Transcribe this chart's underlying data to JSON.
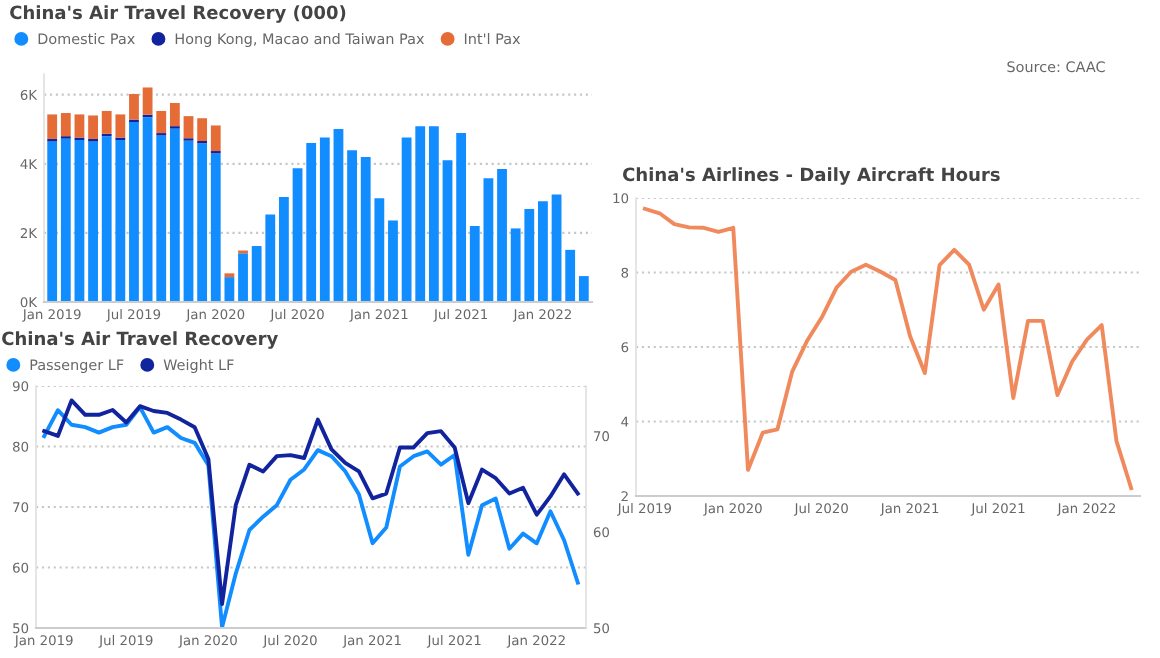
{
  "chart_data": [
    {
      "type": "bar",
      "title": "China's Air Travel Recovery (000)",
      "stacked": true,
      "legend": "top left",
      "grid": "y",
      "categories": [
        "Jan 2019",
        null,
        null,
        null,
        null,
        null,
        "Jul 2019",
        null,
        null,
        null,
        null,
        null,
        "Jan 2020",
        null,
        null,
        null,
        null,
        null,
        "Jul 2020",
        null,
        null,
        null,
        null,
        null,
        "Jan 2021",
        null,
        null,
        null,
        null,
        null,
        "Jul 2021",
        null,
        null,
        null,
        null,
        null,
        "Jan 2022",
        null,
        null,
        null
      ],
      "series": [
        {
          "name": "Domestic Pax",
          "color": "#118dff",
          "values": [
            4.65,
            4.73,
            4.69,
            4.65,
            4.8,
            4.69,
            5.21,
            5.35,
            4.82,
            5.02,
            4.67,
            4.59,
            4.3,
            0.72,
            1.41,
            1.62,
            2.53,
            3.04,
            3.87,
            4.6,
            4.76,
            5.01,
            4.39,
            4.2,
            3.0,
            2.36,
            4.76,
            5.09,
            5.09,
            4.1,
            4.89,
            2.2,
            3.58,
            3.85,
            2.13,
            2.69,
            2.92,
            3.11,
            1.51,
            0.75
          ]
        },
        {
          "name": "Hong Kong, Macao and Taiwan Pax",
          "color": "#12239e",
          "values": [
            0.07,
            0.07,
            0.07,
            0.07,
            0.07,
            0.07,
            0.07,
            0.07,
            0.07,
            0.07,
            0.07,
            0.07,
            0.07,
            null,
            null,
            null,
            null,
            null,
            null,
            null,
            null,
            null,
            null,
            null,
            null,
            null,
            null,
            null,
            null,
            null,
            null,
            null,
            null,
            null,
            null,
            null,
            null,
            null,
            null,
            null
          ]
        },
        {
          "name": "Int'l Pax",
          "color": "#e66c37",
          "values": [
            0.71,
            0.67,
            0.67,
            0.68,
            0.66,
            0.67,
            0.74,
            0.79,
            0.64,
            0.67,
            0.64,
            0.66,
            0.74,
            0.11,
            0.08,
            null,
            null,
            null,
            null,
            null,
            null,
            null,
            null,
            null,
            null,
            null,
            null,
            null,
            null,
            null,
            null,
            null,
            null,
            null,
            null,
            null,
            null,
            null,
            null,
            null
          ]
        }
      ],
      "ylim": [
        0,
        6.6
      ],
      "yticks": [
        {
          "value": 0,
          "label": "0K"
        },
        {
          "value": 2,
          "label": "2K"
        },
        {
          "value": 4,
          "label": "4K"
        },
        {
          "value": 6,
          "label": "6K"
        }
      ]
    },
    {
      "type": "line",
      "title": "China's Air Travel Recovery",
      "legend": "top left",
      "grid": "y",
      "categories": [
        "Jan 2019",
        null,
        null,
        null,
        null,
        null,
        "Jul 2019",
        null,
        null,
        null,
        null,
        null,
        "Jan 2020",
        null,
        null,
        null,
        null,
        null,
        "Jul 2020",
        null,
        null,
        null,
        null,
        null,
        "Jan 2021",
        null,
        null,
        null,
        null,
        null,
        "Jul 2021",
        null,
        null,
        null,
        null,
        null,
        "Jan 2022",
        null,
        null,
        null
      ],
      "series": [
        {
          "name": "Passenger LF",
          "color": "#118dff",
          "values": [
            81.7,
            86.0,
            83.6,
            83.2,
            82.3,
            83.2,
            83.6,
            86.5,
            82.3,
            83.2,
            81.4,
            80.6,
            76.9,
            50.1,
            59.0,
            66.2,
            68.4,
            70.3,
            74.5,
            76.2,
            79.4,
            78.4,
            75.9,
            72.1,
            64.0,
            66.6,
            76.7,
            78.4,
            79.2,
            77.0,
            78.6,
            62.1,
            70.3,
            71.4,
            63.1,
            65.6,
            64.0,
            69.3,
            64.5,
            57.5
          ]
        },
        {
          "name": "Weight LF",
          "color": "#12239e",
          "axis": "y2",
          "values": [
            70.5,
            70.0,
            73.7,
            72.2,
            72.2,
            72.7,
            71.4,
            73.1,
            72.6,
            72.4,
            71.7,
            70.9,
            67.6,
            52.5,
            62.8,
            67.0,
            66.3,
            67.9,
            68.0,
            67.7,
            71.7,
            68.6,
            67.2,
            66.3,
            63.5,
            64.0,
            68.8,
            68.8,
            70.3,
            70.5,
            68.8,
            63.0,
            66.5,
            65.6,
            64.0,
            64.6,
            61.8,
            63.7,
            66.0,
            64.0
          ]
        }
      ],
      "ylim": [
        50,
        90
      ],
      "yticks": [
        50,
        60,
        70,
        80,
        90
      ],
      "y2lim": [
        50,
        75.2
      ],
      "y2ticks": [
        50,
        60,
        70
      ]
    },
    {
      "type": "line",
      "title": "China's Airlines - Daily Aircraft Hours",
      "grid": "y",
      "annotations": [
        "Source: CAAC"
      ],
      "categories": [
        "Jul 2019",
        null,
        null,
        null,
        null,
        null,
        "Jan 2020",
        null,
        null,
        null,
        null,
        null,
        "Jul 2020",
        null,
        null,
        null,
        null,
        null,
        "Jan 2021",
        null,
        null,
        null,
        null,
        null,
        "Jul 2021",
        null,
        null,
        null,
        null,
        null,
        "Jan 2022",
        null,
        null,
        null
      ],
      "series": [
        {
          "color": "#f08a5d",
          "values": [
            9.71,
            9.59,
            9.3,
            9.21,
            9.2,
            9.09,
            9.2,
            2.7,
            3.7,
            3.79,
            5.34,
            6.16,
            6.79,
            7.59,
            8.02,
            8.21,
            8.02,
            7.8,
            6.29,
            5.3,
            8.2,
            8.61,
            8.21,
            7.0,
            7.68,
            4.63,
            6.7,
            6.7,
            4.71,
            5.61,
            6.2,
            6.59,
            3.48,
            2.21
          ]
        }
      ],
      "ylim": [
        2,
        10
      ],
      "yticks": [
        2,
        4,
        6,
        8,
        10
      ]
    }
  ]
}
